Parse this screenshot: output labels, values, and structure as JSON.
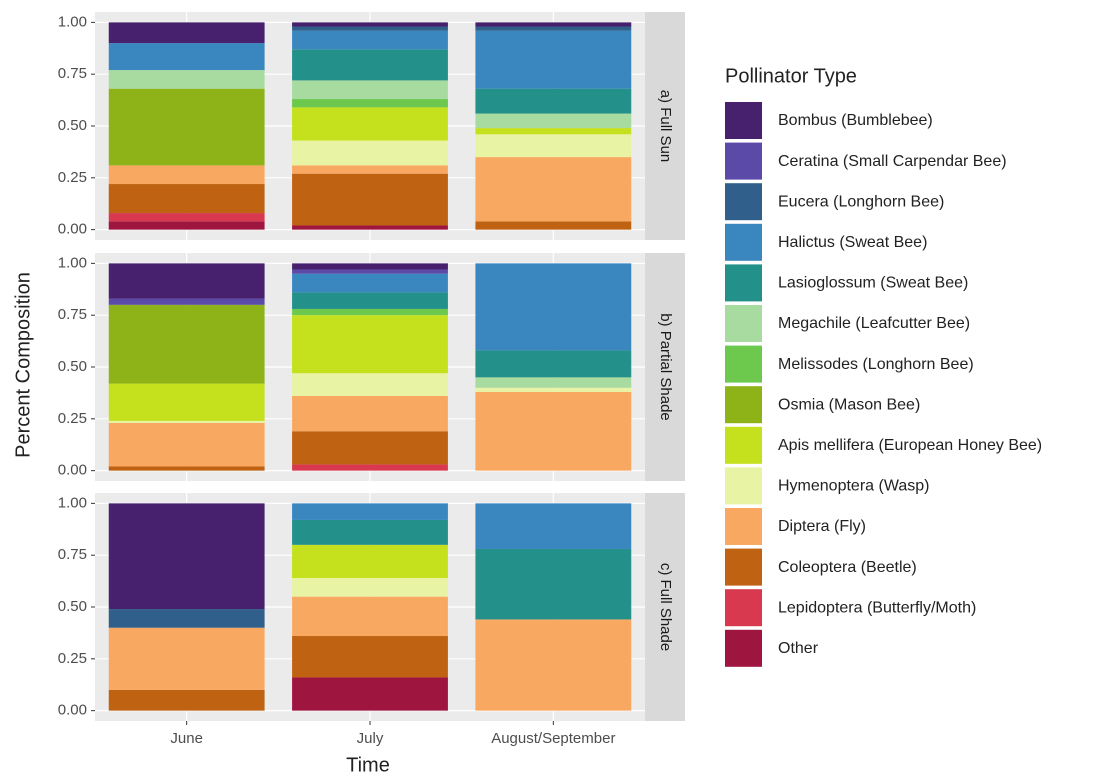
{
  "chart_data": {
    "type": "stacked_bar_facets",
    "x_label": "Time",
    "y_label": "Percent Composition",
    "legend_title": "Pollinator Type",
    "categories": [
      "June",
      "July",
      "August/September"
    ],
    "panels": [
      "a) Full Sun",
      "b) Partial Shade",
      "c) Full Shade"
    ],
    "ylim": [
      -0.05,
      1.05
    ],
    "yticks": [
      {
        "value": 0,
        "label": "0.00"
      },
      {
        "value": 0.25,
        "label": "0.25"
      },
      {
        "value": 0.5,
        "label": "0.50"
      },
      {
        "value": 0.75,
        "label": "0.75"
      },
      {
        "value": 1,
        "label": "1.00"
      }
    ],
    "grid": true,
    "series": [
      {
        "name": "Bombus (Bumblebee)",
        "color": "#47216d",
        "values": [
          [
            0.1,
            0.02,
            0.02
          ],
          [
            0.17,
            0.03,
            0
          ],
          [
            0.51,
            0,
            0
          ]
        ]
      },
      {
        "name": "Ceratina (Small Carpendar Bee)",
        "color": "#5b4aa8",
        "values": [
          [
            0,
            0,
            0
          ],
          [
            0.03,
            0.02,
            0
          ],
          [
            0,
            0,
            0
          ]
        ]
      },
      {
        "name": "Eucera (Longhorn Bee)",
        "color": "#2f5f8a",
        "values": [
          [
            0,
            0.02,
            0.02
          ],
          [
            0,
            0,
            0
          ],
          [
            0.09,
            0,
            0
          ]
        ]
      },
      {
        "name": "Halictus (Sweat Bee)",
        "color": "#3a87c0",
        "values": [
          [
            0.13,
            0.09,
            0.28
          ],
          [
            0,
            0.09,
            0.42
          ],
          [
            0,
            0.08,
            0.22
          ]
        ]
      },
      {
        "name": "Lasioglossum (Sweat Bee)",
        "color": "#23918a",
        "values": [
          [
            0,
            0.15,
            0.12
          ],
          [
            0,
            0.08,
            0.13
          ],
          [
            0,
            0.12,
            0.34
          ]
        ]
      },
      {
        "name": "Megachile (Leafcutter Bee)",
        "color": "#a8dba0",
        "values": [
          [
            0.09,
            0.09,
            0.07
          ],
          [
            0,
            0,
            0.05
          ],
          [
            0,
            0,
            0
          ]
        ]
      },
      {
        "name": "Melissodes (Longhorn Bee)",
        "color": "#6cc94e",
        "values": [
          [
            0,
            0.04,
            0
          ],
          [
            0,
            0.03,
            0
          ],
          [
            0,
            0,
            0
          ]
        ]
      },
      {
        "name": "Osmia (Mason Bee)",
        "color": "#8db318",
        "values": [
          [
            0.37,
            0,
            0
          ],
          [
            0.38,
            0,
            0
          ],
          [
            0,
            0,
            0
          ]
        ]
      },
      {
        "name": "Apis mellifera (European Honey Bee)",
        "color": "#c5e01c",
        "values": [
          [
            0,
            0.16,
            0.03
          ],
          [
            0.18,
            0.28,
            0
          ],
          [
            0,
            0.16,
            0
          ]
        ]
      },
      {
        "name": "Hymenoptera (Wasp)",
        "color": "#e8f3a4",
        "values": [
          [
            0,
            0.12,
            0.11
          ],
          [
            0.01,
            0.11,
            0.02
          ],
          [
            0,
            0.09,
            0
          ]
        ]
      },
      {
        "name": "Diptera (Fly)",
        "color": "#f9a861",
        "values": [
          [
            0.09,
            0.04,
            0.31
          ],
          [
            0.21,
            0.17,
            0.38
          ],
          [
            0.3,
            0.19,
            0.44
          ]
        ]
      },
      {
        "name": "Coleoptera (Beetle)",
        "color": "#bf6313",
        "values": [
          [
            0.14,
            0.25,
            0.04
          ],
          [
            0.02,
            0.16,
            0
          ],
          [
            0.1,
            0.2,
            0
          ]
        ]
      },
      {
        "name": "Lepidoptera (Butterfly/Moth)",
        "color": "#d9394e",
        "values": [
          [
            0.04,
            0,
            0
          ],
          [
            0,
            0.03,
            0
          ],
          [
            0,
            0,
            0
          ]
        ]
      },
      {
        "name": "Other",
        "color": "#9e1640",
        "values": [
          [
            0.04,
            0.02,
            0
          ],
          [
            0,
            0,
            0
          ],
          [
            0,
            0.16,
            0
          ]
        ]
      }
    ]
  }
}
